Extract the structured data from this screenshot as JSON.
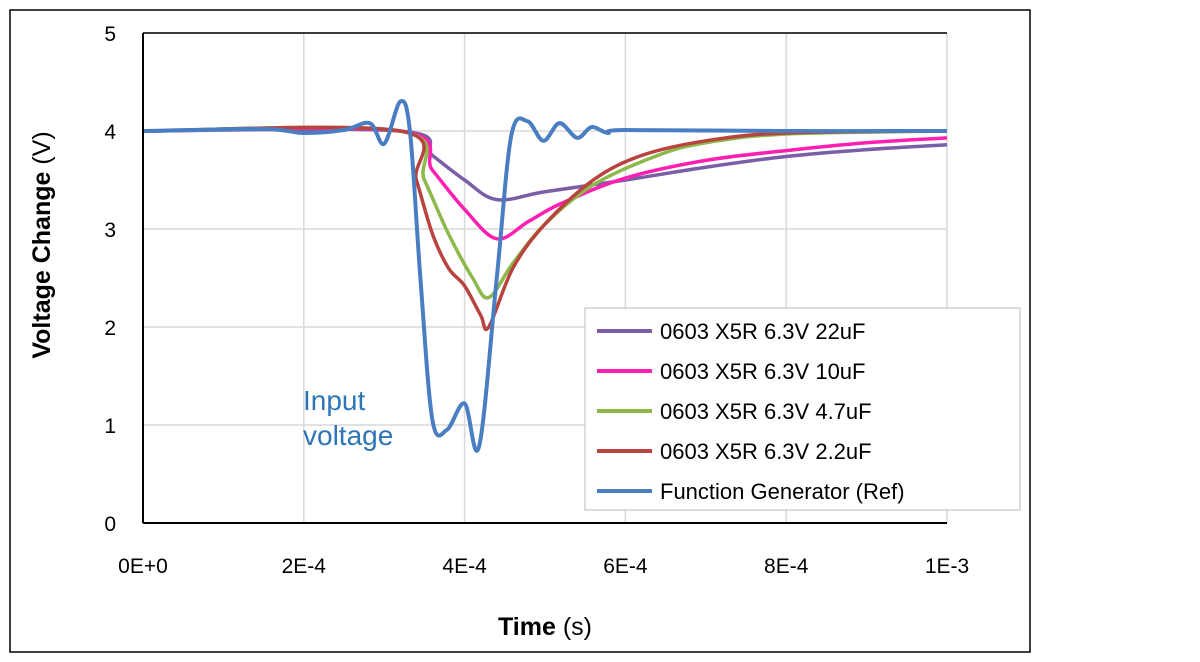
{
  "chart_data": {
    "type": "line",
    "xlabel": {
      "bold": "Time",
      "unit": " (s)"
    },
    "ylabel": {
      "bold": "Voltage Change",
      "unit": " (V)"
    },
    "xlim": [
      0,
      0.001
    ],
    "ylim": [
      0,
      5
    ],
    "x_ticks": [
      {
        "v": 0,
        "label": "0E+0"
      },
      {
        "v": 0.0002,
        "label": "2E-4"
      },
      {
        "v": 0.0004,
        "label": "4E-4"
      },
      {
        "v": 0.0006,
        "label": "6E-4"
      },
      {
        "v": 0.0008,
        "label": "8E-4"
      },
      {
        "v": 0.001,
        "label": "1E-3"
      }
    ],
    "y_ticks": [
      {
        "v": 0,
        "label": "0"
      },
      {
        "v": 1,
        "label": "1"
      },
      {
        "v": 2,
        "label": "2"
      },
      {
        "v": 3,
        "label": "3"
      },
      {
        "v": 4,
        "label": "4"
      },
      {
        "v": 5,
        "label": "5"
      }
    ],
    "grid": "vertical and horizontal",
    "legend_position": "bottom-right",
    "annotation": {
      "lines": [
        "Input",
        "voltage"
      ],
      "color": "#2e75b6"
    },
    "series": [
      {
        "name": "0603 X5R 6.3V 22uF",
        "color": "#7a5ea6",
        "points": [
          [
            0,
            4
          ],
          [
            0.00032,
            4.0
          ],
          [
            0.00036,
            3.75
          ],
          [
            0.0004,
            3.5
          ],
          [
            0.00044,
            3.3
          ],
          [
            0.0005,
            3.38
          ],
          [
            0.0006,
            3.5
          ],
          [
            0.0007,
            3.63
          ],
          [
            0.0008,
            3.74
          ],
          [
            0.0009,
            3.81
          ],
          [
            0.001,
            3.86
          ]
        ]
      },
      {
        "name": "0603 X5R 6.3V 10uF",
        "color": "#ff1fb0",
        "points": [
          [
            0,
            4
          ],
          [
            0.00032,
            4.0
          ],
          [
            0.00036,
            3.6
          ],
          [
            0.0004,
            3.2
          ],
          [
            0.00044,
            2.9
          ],
          [
            0.00048,
            3.08
          ],
          [
            0.00052,
            3.26
          ],
          [
            0.0006,
            3.52
          ],
          [
            0.0007,
            3.7
          ],
          [
            0.0008,
            3.8
          ],
          [
            0.0009,
            3.88
          ],
          [
            0.001,
            3.93
          ]
        ]
      },
      {
        "name": "0603 X5R 6.3V 4.7uF",
        "color": "#8db84a",
        "points": [
          [
            0,
            4
          ],
          [
            0.00032,
            4.0
          ],
          [
            0.00035,
            3.5
          ],
          [
            0.00038,
            2.95
          ],
          [
            0.00041,
            2.5
          ],
          [
            0.00043,
            2.3
          ],
          [
            0.00046,
            2.65
          ],
          [
            0.0005,
            3.05
          ],
          [
            0.00056,
            3.45
          ],
          [
            0.00064,
            3.75
          ],
          [
            0.0007,
            3.88
          ],
          [
            0.0008,
            3.97
          ],
          [
            0.001,
            4.0
          ]
        ]
      },
      {
        "name": "0603 X5R 6.3V 2.2uF",
        "color": "#b8433f",
        "points": [
          [
            0,
            4
          ],
          [
            0.00032,
            4.0
          ],
          [
            0.00034,
            3.5
          ],
          [
            0.00036,
            2.95
          ],
          [
            0.00038,
            2.6
          ],
          [
            0.0004,
            2.42
          ],
          [
            0.00042,
            2.12
          ],
          [
            0.00043,
            2.0
          ],
          [
            0.00046,
            2.6
          ],
          [
            0.0005,
            3.05
          ],
          [
            0.00056,
            3.5
          ],
          [
            0.00062,
            3.75
          ],
          [
            0.0007,
            3.9
          ],
          [
            0.0008,
            3.98
          ],
          [
            0.001,
            4.0
          ]
        ]
      },
      {
        "name": "Function Generator (Ref)",
        "color": "#4a7ec2",
        "points": [
          [
            0,
            4
          ],
          [
            0.00015,
            4.02
          ],
          [
            0.0002,
            3.98
          ],
          [
            0.00025,
            4.01
          ],
          [
            0.000282,
            4.08
          ],
          [
            0.0003,
            3.87
          ],
          [
            0.00032,
            4.3
          ],
          [
            0.000332,
            4.0
          ],
          [
            0.000345,
            2.5
          ],
          [
            0.00036,
            1.05
          ],
          [
            0.000378,
            0.95
          ],
          [
            0.0004,
            1.22
          ],
          [
            0.000418,
            0.78
          ],
          [
            0.00044,
            2.5
          ],
          [
            0.000458,
            3.95
          ],
          [
            0.000478,
            4.1
          ],
          [
            0.000498,
            3.9
          ],
          [
            0.000518,
            4.08
          ],
          [
            0.00054,
            3.93
          ],
          [
            0.000558,
            4.04
          ],
          [
            0.000578,
            3.98
          ],
          [
            0.0006,
            4.01
          ],
          [
            0.0008,
            4.0
          ],
          [
            0.001,
            4.0
          ]
        ]
      }
    ]
  }
}
